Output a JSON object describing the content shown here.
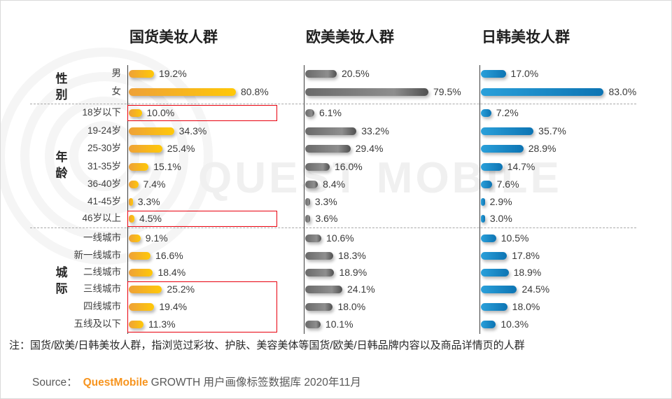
{
  "watermark": {
    "text": "QUEST MOBILE",
    "logo_icon": "concentric-rings"
  },
  "chart_data": {
    "type": "bar",
    "orientation": "horizontal",
    "unit": "%",
    "value_label_format": "{value}%",
    "sections": [
      {
        "name": "性别",
        "categories": [
          "男",
          "女"
        ]
      },
      {
        "name": "年龄",
        "categories": [
          "18岁以下",
          "19-24岁",
          "25-30岁",
          "31-35岁",
          "36-40岁",
          "41-45岁",
          "46岁以上"
        ]
      },
      {
        "name": "城际",
        "categories": [
          "一线城市",
          "新一线城市",
          "二线城市",
          "三线城市",
          "四线城市",
          "五线及以下"
        ]
      }
    ],
    "categories": [
      "男",
      "女",
      "18岁以下",
      "19-24岁",
      "25-30岁",
      "31-35岁",
      "36-40岁",
      "41-45岁",
      "46岁以上",
      "一线城市",
      "新一线城市",
      "二线城市",
      "三线城市",
      "四线城市",
      "五线及以下"
    ],
    "series": [
      {
        "name": "国货美妆人群",
        "color_start": "#EEA138",
        "color_end": "#FFC808",
        "values": [
          19.2,
          80.8,
          10.0,
          34.3,
          25.4,
          15.1,
          7.4,
          3.3,
          4.5,
          9.1,
          16.6,
          18.4,
          25.2,
          19.4,
          11.3
        ]
      },
      {
        "name": "欧美美妆人群",
        "color_start": "#6a6a6a",
        "color_end": "#505050",
        "values": [
          20.5,
          79.5,
          6.1,
          33.2,
          29.4,
          16.0,
          8.4,
          3.3,
          3.6,
          10.6,
          18.3,
          18.9,
          24.1,
          18.0,
          10.1
        ]
      },
      {
        "name": "日韩美妆人群",
        "color_start": "#2aa0da",
        "color_end": "#0d74b3",
        "values": [
          17.0,
          83.0,
          7.2,
          35.7,
          28.9,
          14.7,
          7.6,
          2.9,
          3.0,
          10.5,
          17.8,
          18.9,
          24.5,
          18.0,
          10.3
        ]
      }
    ],
    "highlights": [
      {
        "series": "国货美妆人群",
        "from": "18岁以下",
        "to": "18岁以下",
        "color": "#e8000d"
      },
      {
        "series": "国货美妆人群",
        "from": "46岁以上",
        "to": "46岁以上",
        "color": "#e8000d"
      },
      {
        "series": "国货美妆人群",
        "from": "三线城市",
        "to": "五线及以下",
        "color": "#e8000d"
      }
    ],
    "legend_position": "top-as-column-headers",
    "grid": false
  },
  "note": "注：国货/欧美/日韩美妆人群，指浏览过彩妆、护肤、美容美体等国货/欧美/日韩品牌内容以及商品详情页的人群",
  "source": {
    "label": "Source：",
    "brand": "QuestMobile",
    "brand_color": "#F7941E",
    "rest": "GROWTH 用户画像标签数据库 2020年11月"
  }
}
